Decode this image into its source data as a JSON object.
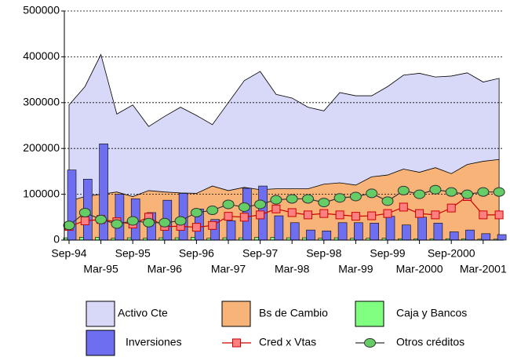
{
  "chart_data": {
    "type": "combo",
    "categories": [
      "Sep-94",
      null,
      "Mar-95",
      null,
      "Sep-95",
      null,
      "Mar-96",
      null,
      "Sep-96",
      null,
      "Mar-97",
      null,
      "Sep-97",
      null,
      "Mar-98",
      null,
      "Sep-98",
      null,
      "Mar-99",
      null,
      "Sep-99",
      null,
      "Mar-2000",
      null,
      "Sep-2000",
      null,
      "Mar-2001",
      null
    ],
    "ylim": [
      0,
      500000
    ],
    "yticks": [
      0,
      100000,
      200000,
      300000,
      400000,
      500000
    ],
    "grid": true,
    "series": [
      {
        "name": "Activo Cte",
        "type": "area",
        "color": "#d8d8f8",
        "values": [
          295000,
          335000,
          405000,
          275000,
          295000,
          248000,
          270000,
          290000,
          272000,
          252000,
          300000,
          348000,
          368000,
          318000,
          310000,
          290000,
          282000,
          322000,
          315000,
          315000,
          335000,
          360000,
          364000,
          356000,
          358000,
          365000,
          345000,
          353000
        ]
      },
      {
        "name": "Bs de Cambio",
        "type": "area",
        "color": "#f8b478",
        "values": [
          85000,
          95000,
          100000,
          105000,
          95000,
          108000,
          105000,
          103000,
          102000,
          118000,
          108000,
          115000,
          110000,
          112000,
          112000,
          112000,
          122000,
          125000,
          120000,
          138000,
          142000,
          155000,
          148000,
          158000,
          145000,
          165000,
          172000,
          176000
        ]
      },
      {
        "name": "Caja y Bancos",
        "type": "bar",
        "color": "#80ff80",
        "values": [
          5000,
          6000,
          6000,
          4000,
          5000,
          4000,
          5000,
          5000,
          6000,
          4000,
          5000,
          5000,
          6000,
          6000,
          5000,
          5000,
          4000,
          5000,
          4000,
          4000,
          4000,
          3000,
          3000,
          3000,
          3000,
          3000,
          2000,
          2000
        ]
      },
      {
        "name": "Inversiones",
        "type": "bar",
        "color": "#6e6ef0",
        "values": [
          153000,
          133000,
          210000,
          100000,
          90000,
          60000,
          87000,
          102000,
          68000,
          45000,
          42000,
          113000,
          118000,
          53000,
          38000,
          22000,
          20000,
          38000,
          38000,
          37000,
          52000,
          33000,
          50000,
          37000,
          18000,
          22000,
          14000,
          12000
        ]
      },
      {
        "name": "Cred x Vtas",
        "type": "line",
        "color": "#cc0000",
        "marker": "square",
        "marker_color": "#ff8080",
        "values": [
          30000,
          42000,
          45000,
          40000,
          35000,
          50000,
          30000,
          30000,
          28000,
          32000,
          52000,
          50000,
          55000,
          68000,
          60000,
          55000,
          58000,
          55000,
          52000,
          53000,
          58000,
          72000,
          58000,
          55000,
          70000,
          95000,
          55000,
          55000
        ]
      },
      {
        "name": "Otros créditos",
        "type": "line",
        "color": "#333333",
        "marker": "circle",
        "marker_color": "#66cc66",
        "values": [
          32000,
          60000,
          45000,
          35000,
          42000,
          38000,
          38000,
          42000,
          60000,
          65000,
          78000,
          72000,
          78000,
          88000,
          90000,
          90000,
          82000,
          92000,
          95000,
          102000,
          85000,
          108000,
          100000,
          110000,
          105000,
          100000,
          105000,
          105000
        ]
      }
    ]
  }
}
